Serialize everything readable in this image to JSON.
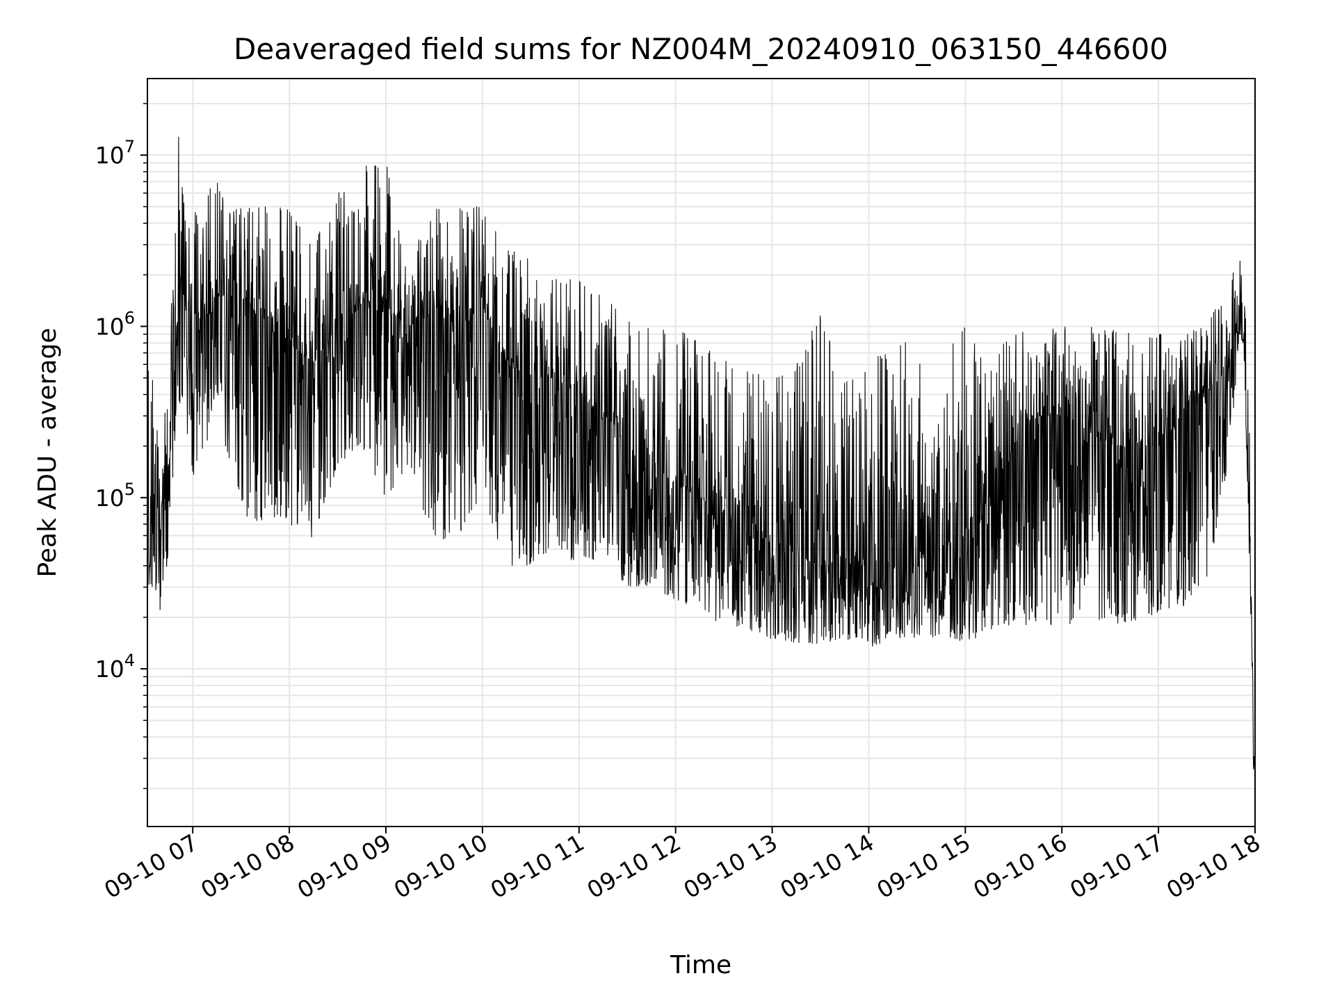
{
  "chart_data": {
    "type": "line",
    "title": "Deaveraged field sums for NZ004M_20240910_063150_446600",
    "xlabel": "Time",
    "ylabel": "Peak ADU - average",
    "yscale": "log",
    "ylim": [
      1200,
      28000000
    ],
    "xlim": [
      "2024-09-10 06:31:50",
      "2024-09-10 18:00:00"
    ],
    "x_ticks": [
      {
        "value": "2024-09-10 07:00",
        "label": "09-10 07"
      },
      {
        "value": "2024-09-10 08:00",
        "label": "09-10 08"
      },
      {
        "value": "2024-09-10 09:00",
        "label": "09-10 09"
      },
      {
        "value": "2024-09-10 10:00",
        "label": "09-10 10"
      },
      {
        "value": "2024-09-10 11:00",
        "label": "09-10 11"
      },
      {
        "value": "2024-09-10 12:00",
        "label": "09-10 12"
      },
      {
        "value": "2024-09-10 13:00",
        "label": "09-10 13"
      },
      {
        "value": "2024-09-10 14:00",
        "label": "09-10 14"
      },
      {
        "value": "2024-09-10 15:00",
        "label": "09-10 15"
      },
      {
        "value": "2024-09-10 16:00",
        "label": "09-10 16"
      },
      {
        "value": "2024-09-10 17:00",
        "label": "09-10 17"
      },
      {
        "value": "2024-09-10 18:00",
        "label": "09-10 18"
      }
    ],
    "y_ticks": [
      {
        "value": 10000,
        "base": "10",
        "exp": "4"
      },
      {
        "value": 100000,
        "base": "10",
        "exp": "5"
      },
      {
        "value": 1000000,
        "base": "10",
        "exp": "6"
      },
      {
        "value": 10000000,
        "base": "10",
        "exp": "7"
      }
    ],
    "grid": true,
    "line_color": "#000000",
    "grid_color": "#e6e6e6",
    "series": [
      {
        "x": [
          "2024-09-10 06:32",
          "2024-09-10 06:36",
          "2024-09-10 06:40",
          "2024-09-10 06:45",
          "2024-09-10 06:50",
          "2024-09-10 06:55",
          "2024-09-10 07:00",
          "2024-09-10 07:15",
          "2024-09-10 07:30",
          "2024-09-10 07:45",
          "2024-09-10 08:00",
          "2024-09-10 08:15",
          "2024-09-10 08:30",
          "2024-09-10 08:45",
          "2024-09-10 09:00",
          "2024-09-10 09:15",
          "2024-09-10 09:30",
          "2024-09-10 09:45",
          "2024-09-10 10:00",
          "2024-09-10 10:15",
          "2024-09-10 10:30",
          "2024-09-10 10:45",
          "2024-09-10 11:00",
          "2024-09-10 11:15",
          "2024-09-10 11:30",
          "2024-09-10 11:45",
          "2024-09-10 12:00",
          "2024-09-10 12:15",
          "2024-09-10 12:30",
          "2024-09-10 12:45",
          "2024-09-10 13:00",
          "2024-09-10 13:15",
          "2024-09-10 13:30",
          "2024-09-10 13:45",
          "2024-09-10 14:00",
          "2024-09-10 14:15",
          "2024-09-10 14:30",
          "2024-09-10 14:45",
          "2024-09-10 15:00",
          "2024-09-10 15:15",
          "2024-09-10 15:30",
          "2024-09-10 15:45",
          "2024-09-10 16:00",
          "2024-09-10 16:15",
          "2024-09-10 16:30",
          "2024-09-10 16:45",
          "2024-09-10 17:00",
          "2024-09-10 17:15",
          "2024-09-10 17:30",
          "2024-09-10 17:45",
          "2024-09-10 17:50",
          "2024-09-10 17:53",
          "2024-09-10 17:56",
          "2024-09-10 17:58",
          "2024-09-10 17:59",
          "2024-09-10 18:00"
        ],
        "y": [
          40000,
          100000,
          80000,
          150000,
          1000000,
          1500000,
          800000,
          1500000,
          1500000,
          1000000,
          800000,
          600000,
          1000000,
          1300000,
          1200000,
          1000000,
          1200000,
          1000000,
          1300000,
          600000,
          500000,
          500000,
          400000,
          300000,
          200000,
          150000,
          120000,
          100000,
          80000,
          60000,
          50000,
          45000,
          40000,
          40000,
          40000,
          40000,
          40000,
          50000,
          60000,
          100000,
          200000,
          300000,
          300000,
          250000,
          200000,
          200000,
          200000,
          300000,
          400000,
          600000,
          1300000,
          1000000,
          100000,
          20000,
          4000,
          2000
        ],
        "y_low": [
          28000,
          30000,
          20000,
          45000,
          350000,
          300000,
          120000,
          300000,
          80000,
          70000,
          70000,
          55000,
          150000,
          200000,
          90000,
          150000,
          50000,
          60000,
          100000,
          40000,
          40000,
          50000,
          40000,
          45000,
          30000,
          30000,
          25000,
          20000,
          18000,
          16000,
          15000,
          14000,
          14000,
          15000,
          13000,
          15000,
          15000,
          15000,
          14000,
          16000,
          18000,
          18000,
          18000,
          18000,
          18000,
          19000,
          20000,
          23000,
          30000,
          200000,
          800000,
          800000,
          60000,
          12000,
          2500,
          2000
        ],
        "y_high": [
          2500000,
          300000,
          200000,
          500000,
          18000000,
          5000000,
          5000000,
          7000000,
          5000000,
          5000000,
          5000000,
          3000000,
          6000000,
          9000000,
          9500000,
          3000000,
          5000000,
          5000000,
          5000000,
          3000000,
          2500000,
          2000000,
          2000000,
          1500000,
          1200000,
          1000000,
          1000000,
          800000,
          700000,
          600000,
          500000,
          600000,
          1200000,
          500000,
          600000,
          800000,
          1000000,
          700000,
          1000000,
          600000,
          1000000,
          1000000,
          1000000,
          1000000,
          1000000,
          900000,
          900000,
          900000,
          1000000,
          2000000,
          2800000,
          1500000,
          800000,
          100000,
          5000,
          2500
        ]
      }
    ]
  }
}
